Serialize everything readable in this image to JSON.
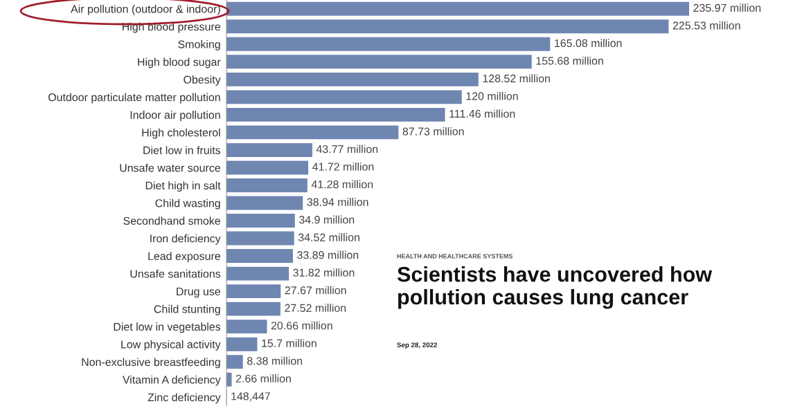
{
  "chart_data": {
    "type": "bar",
    "orientation": "horizontal",
    "categories": [
      "Air pollution (outdoor & indoor)",
      "High blood pressure",
      "Smoking",
      "High blood sugar",
      "Obesity",
      "Outdoor particulate matter pollution",
      "Indoor air pollution",
      "High cholesterol",
      "Diet low in fruits",
      "Unsafe water source",
      "Diet high in salt",
      "Child wasting",
      "Secondhand smoke",
      "Iron deficiency",
      "Lead exposure",
      "Unsafe sanitations",
      "Drug use",
      "Child stunting",
      "Diet low in vegetables",
      "Low physical activity",
      "Non-exclusive breastfeeding",
      "Vitamin A deficiency",
      "Zinc deficiency"
    ],
    "values": [
      235970000,
      225530000,
      165080000,
      155680000,
      128520000,
      120000000,
      111460000,
      87730000,
      43770000,
      41720000,
      41280000,
      38940000,
      34900000,
      34520000,
      33890000,
      31820000,
      27670000,
      27520000,
      20660000,
      15700000,
      8380000,
      2660000,
      148447
    ],
    "value_labels": [
      "235.97 million",
      "225.53 million",
      "165.08 million",
      "155.68 million",
      "128.52 million",
      "120 million",
      "111.46 million",
      "87.73 million",
      "43.77 million",
      "41.72 million",
      "41.28 million",
      "38.94 million",
      "34.9 million",
      "34.52 million",
      "33.89 million",
      "31.82 million",
      "27.67 million",
      "27.52 million",
      "20.66 million",
      "15.7 million",
      "8.38 million",
      "2.66 million",
      "148,447"
    ],
    "color": "#6f86b1",
    "annotations": [
      "HEALTH AND HEALTHCARE SYSTEMS",
      "Scientists have uncovered how pollution causes lung cancer",
      "Sep 28, 2022"
    ]
  }
}
